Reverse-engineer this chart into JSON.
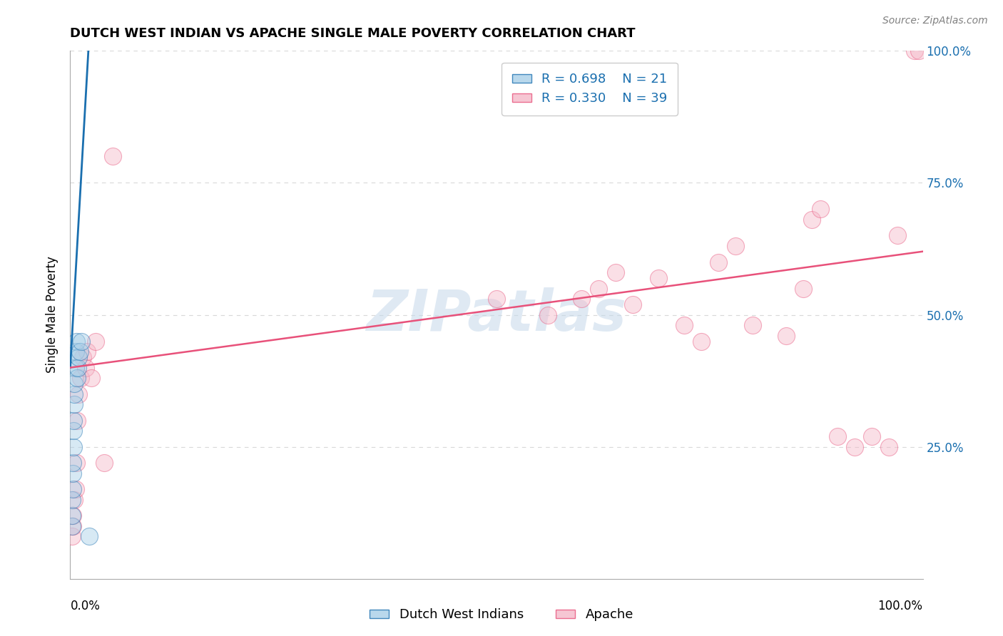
{
  "title": "DUTCH WEST INDIAN VS APACHE SINGLE MALE POVERTY CORRELATION CHART",
  "source": "Source: ZipAtlas.com",
  "ylabel": "Single Male Poverty",
  "xlim": [
    0,
    1.0
  ],
  "ylim": [
    0,
    1.0
  ],
  "legend1_R": "0.698",
  "legend1_N": "21",
  "legend2_R": "0.330",
  "legend2_N": "39",
  "watermark": "ZIPatlas",
  "blue_scatter_x": [
    0.002,
    0.002,
    0.002,
    0.003,
    0.003,
    0.003,
    0.004,
    0.004,
    0.004,
    0.005,
    0.005,
    0.005,
    0.006,
    0.006,
    0.007,
    0.008,
    0.009,
    0.01,
    0.011,
    0.013,
    0.022
  ],
  "blue_scatter_y": [
    0.1,
    0.12,
    0.15,
    0.17,
    0.2,
    0.22,
    0.25,
    0.28,
    0.3,
    0.33,
    0.35,
    0.37,
    0.4,
    0.43,
    0.45,
    0.38,
    0.4,
    0.42,
    0.43,
    0.45,
    0.08
  ],
  "pink_scatter_x": [
    0.002,
    0.003,
    0.003,
    0.005,
    0.006,
    0.007,
    0.008,
    0.01,
    0.012,
    0.015,
    0.018,
    0.02,
    0.025,
    0.03,
    0.04,
    0.05,
    0.5,
    0.56,
    0.6,
    0.62,
    0.64,
    0.66,
    0.69,
    0.72,
    0.74,
    0.76,
    0.78,
    0.8,
    0.84,
    0.86,
    0.87,
    0.88,
    0.9,
    0.92,
    0.94,
    0.96,
    0.97,
    0.99,
    0.995
  ],
  "pink_scatter_y": [
    0.08,
    0.1,
    0.12,
    0.15,
    0.17,
    0.22,
    0.3,
    0.35,
    0.38,
    0.42,
    0.4,
    0.43,
    0.38,
    0.45,
    0.22,
    0.8,
    0.53,
    0.5,
    0.53,
    0.55,
    0.58,
    0.52,
    0.57,
    0.48,
    0.45,
    0.6,
    0.63,
    0.48,
    0.46,
    0.55,
    0.68,
    0.7,
    0.27,
    0.25,
    0.27,
    0.25,
    0.65,
    1.0,
    1.0
  ],
  "blue_line_x": [
    0.0,
    0.022
  ],
  "blue_line_y": [
    0.4,
    1.02
  ],
  "pink_line_x": [
    0.0,
    1.0
  ],
  "pink_line_y": [
    0.4,
    0.62
  ],
  "scatter_size": 300,
  "scatter_alpha": 0.45,
  "blue_color": "#a8cfe8",
  "pink_color": "#f4b8c8",
  "blue_line_color": "#1a6faf",
  "pink_line_color": "#e8517a",
  "legend_R_color": "#1a6faf",
  "grid_color": "#d8d8d8"
}
